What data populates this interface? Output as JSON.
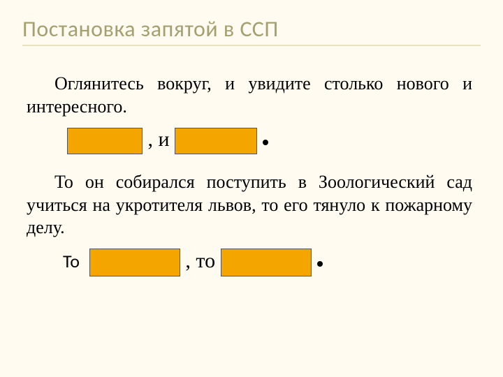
{
  "title": "Постановка запятой в ССП",
  "paragraph1": "Оглянитесь вокруг, и увидите  столько нового и интересного.",
  "scheme1": {
    "center": " , и ",
    "box_color": "#f5a500",
    "box_border": "#555555",
    "box1_w": 108,
    "box1_h": 38,
    "box2_w": 118,
    "box2_h": 38
  },
  "paragraph2": "То он собирался поступить в Зоологический сад учиться на укротителя львов, то его тянуло к пожарному делу.",
  "scheme2": {
    "prefix": "То ",
    "center": " , то ",
    "box_color": "#f5a500",
    "box_border": "#555555",
    "box1_w": 130,
    "box1_h": 40,
    "box2_w": 130,
    "box2_h": 40
  },
  "colors": {
    "background": "#fffbf1",
    "title_color": "#a5a070",
    "rule_color": "#e9e3c2",
    "text_color": "#000000"
  },
  "typography": {
    "title_font": "Calibri",
    "title_size_pt": 24,
    "body_font": "Times New Roman",
    "body_size_pt": 20
  }
}
